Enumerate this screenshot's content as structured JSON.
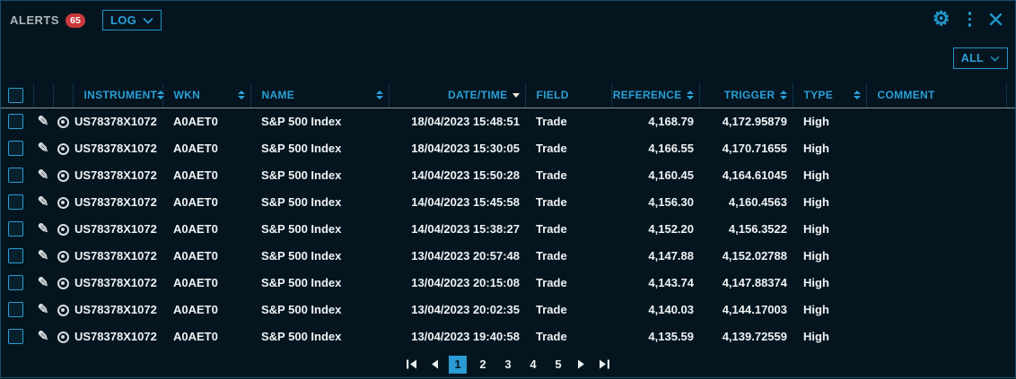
{
  "panel": {
    "title": "ALERTS",
    "badge_count": "65",
    "log_dropdown_label": "LOG",
    "filter_dropdown_label": "ALL"
  },
  "icons": {
    "gear": "⚙",
    "edit": "✎"
  },
  "colors": {
    "accent": "#2196c8",
    "badge_red": "#c8393c",
    "active_page_bg": "#2a9bd4",
    "row_text": "#f0f3f5",
    "background": "#04151f"
  },
  "table": {
    "headers": [
      "INSTRUMENT",
      "WKN",
      "NAME",
      "DATE/TIME",
      "FIELD",
      "REFERENCE",
      "TRIGGER",
      "TYPE",
      "COMMENT"
    ],
    "rows": [
      {
        "instrument": "US78378X1072",
        "wkn": "A0AET0",
        "name": "S&P 500 Index",
        "datetime": "18/04/2023 15:48:51",
        "field": "Trade",
        "reference": "4,168.79",
        "trigger": "4,172.95879",
        "type": "High",
        "comment": ""
      },
      {
        "instrument": "US78378X1072",
        "wkn": "A0AET0",
        "name": "S&P 500 Index",
        "datetime": "18/04/2023 15:30:05",
        "field": "Trade",
        "reference": "4,166.55",
        "trigger": "4,170.71655",
        "type": "High",
        "comment": ""
      },
      {
        "instrument": "US78378X1072",
        "wkn": "A0AET0",
        "name": "S&P 500 Index",
        "datetime": "14/04/2023 15:50:28",
        "field": "Trade",
        "reference": "4,160.45",
        "trigger": "4,164.61045",
        "type": "High",
        "comment": ""
      },
      {
        "instrument": "US78378X1072",
        "wkn": "A0AET0",
        "name": "S&P 500 Index",
        "datetime": "14/04/2023 15:45:58",
        "field": "Trade",
        "reference": "4,156.30",
        "trigger": "4,160.4563",
        "type": "High",
        "comment": ""
      },
      {
        "instrument": "US78378X1072",
        "wkn": "A0AET0",
        "name": "S&P 500 Index",
        "datetime": "14/04/2023 15:38:27",
        "field": "Trade",
        "reference": "4,152.20",
        "trigger": "4,156.3522",
        "type": "High",
        "comment": ""
      },
      {
        "instrument": "US78378X1072",
        "wkn": "A0AET0",
        "name": "S&P 500 Index",
        "datetime": "13/04/2023 20:57:48",
        "field": "Trade",
        "reference": "4,147.88",
        "trigger": "4,152.02788",
        "type": "High",
        "comment": ""
      },
      {
        "instrument": "US78378X1072",
        "wkn": "A0AET0",
        "name": "S&P 500 Index",
        "datetime": "13/04/2023 20:15:08",
        "field": "Trade",
        "reference": "4,143.74",
        "trigger": "4,147.88374",
        "type": "High",
        "comment": ""
      },
      {
        "instrument": "US78378X1072",
        "wkn": "A0AET0",
        "name": "S&P 500 Index",
        "datetime": "13/04/2023 20:02:35",
        "field": "Trade",
        "reference": "4,140.03",
        "trigger": "4,144.17003",
        "type": "High",
        "comment": ""
      },
      {
        "instrument": "US78378X1072",
        "wkn": "A0AET0",
        "name": "S&P 500 Index",
        "datetime": "13/04/2023 19:40:58",
        "field": "Trade",
        "reference": "4,135.59",
        "trigger": "4,139.72559",
        "type": "High",
        "comment": ""
      }
    ]
  },
  "pagination": {
    "pages": [
      "1",
      "2",
      "3",
      "4",
      "5"
    ],
    "current": "1"
  }
}
